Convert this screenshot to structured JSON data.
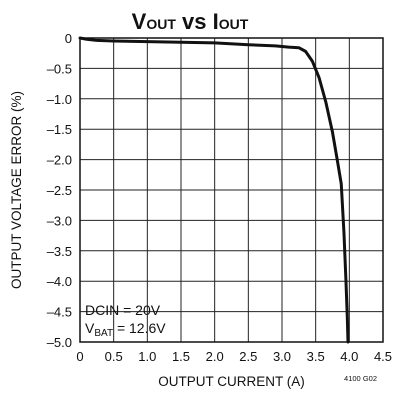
{
  "chart_data": {
    "type": "line",
    "title": {
      "v": "V",
      "out1": "OUT",
      "vs": " vs ",
      "i": "I",
      "out2": "OUT"
    },
    "xlabel": "OUTPUT CURRENT (A)",
    "ylabel": "OUTPUT VOLTAGE ERROR (%)",
    "xlim": [
      0,
      4.5
    ],
    "ylim": [
      -5.0,
      0
    ],
    "x_ticks": [
      "0",
      "0.5",
      "1.0",
      "1.5",
      "2.0",
      "2.5",
      "3.0",
      "3.5",
      "4.0",
      "4.5"
    ],
    "y_ticks": [
      "0",
      "–0.5",
      "–1.0",
      "–1.5",
      "–2.0",
      "–2.5",
      "–3.0",
      "–3.5",
      "–4.0",
      "–4.5",
      "–5.0"
    ],
    "grid": true,
    "annotations": {
      "line1": "DCIN = 20V",
      "line2_main": "V",
      "line2_sub": "BAT",
      "line2_rest": " = 12.6V"
    },
    "figure_code": "4100 G02",
    "series": [
      {
        "x": [
          0,
          0.1,
          0.25,
          0.5,
          1.0,
          1.5,
          2.0,
          2.5,
          2.9,
          3.1,
          3.25,
          3.35,
          3.45,
          3.55,
          3.65,
          3.75,
          3.82,
          3.88,
          3.92,
          3.95,
          3.97,
          3.98
        ],
        "y": [
          0,
          -0.02,
          -0.04,
          -0.05,
          -0.06,
          -0.07,
          -0.08,
          -0.11,
          -0.13,
          -0.15,
          -0.16,
          -0.22,
          -0.38,
          -0.65,
          -1.05,
          -1.55,
          -2.0,
          -2.4,
          -3.2,
          -4.0,
          -4.6,
          -5.0
        ]
      }
    ]
  }
}
